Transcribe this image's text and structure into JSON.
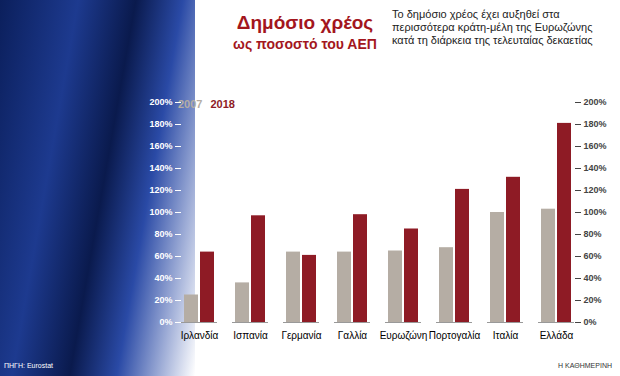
{
  "chart_data": {
    "type": "bar",
    "title": "Δημόσιο χρέος",
    "subtitle": "ως ποσοστό του ΑΕΠ",
    "annotation": "Το δημόσιο χρέος έχει αυξηθεί στα περισσότερα κράτη-μέλη της Ευρωζώνης κατά τη διάρκεια της τελευταίας δεκαετίας",
    "source": "ΠΗΓΗ: Eurostat",
    "credit": "Η ΚΑΘΗΜΕΡΙΝΗ",
    "categories": [
      "Ιρλανδία",
      "Ισπανία",
      "Γερμανία",
      "Γαλλία",
      "Ευρωζώνη",
      "Πορτογαλία",
      "Ιταλία",
      "Ελλάδα"
    ],
    "series": [
      {
        "name": "2007",
        "color": "#b5ada4",
        "values": [
          25,
          36,
          64,
          64,
          65,
          68,
          100,
          103
        ]
      },
      {
        "name": "2018",
        "color": "#8e1b25",
        "values": [
          64,
          97,
          61,
          98,
          85,
          121,
          132,
          181
        ]
      }
    ],
    "ylim": [
      0,
      200
    ],
    "yticks": [
      {
        "value": 0,
        "label": "0%"
      },
      {
        "value": 20,
        "label": "20%"
      },
      {
        "value": 40,
        "label": "40%"
      },
      {
        "value": 60,
        "label": "60%"
      },
      {
        "value": 80,
        "label": "80%"
      },
      {
        "value": 100,
        "label": "100%"
      },
      {
        "value": 120,
        "label": "120%"
      },
      {
        "value": 140,
        "label": "140%"
      },
      {
        "value": 160,
        "label": "160%"
      },
      {
        "value": 180,
        "label": "180%"
      },
      {
        "value": 200,
        "label": "200%"
      }
    ],
    "grid": false,
    "legend": "top-left"
  }
}
